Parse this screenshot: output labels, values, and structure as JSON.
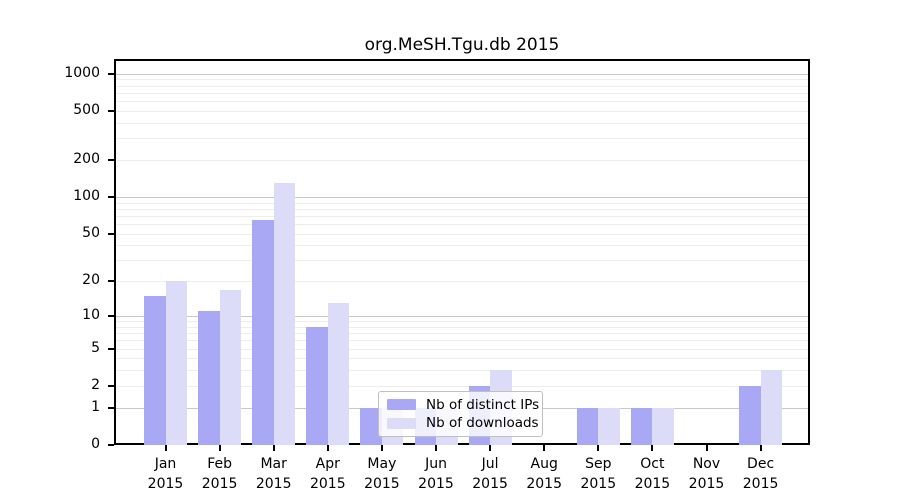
{
  "figure": {
    "title": "org.MeSH.Tgu.db 2015"
  },
  "chart_data": {
    "type": "bar",
    "title": "org.MeSH.Tgu.db 2015",
    "categories": [
      "Jan",
      "Feb",
      "Mar",
      "Apr",
      "May",
      "Jun",
      "Jul",
      "Aug",
      "Sep",
      "Oct",
      "Nov",
      "Dec"
    ],
    "year_label": "2015",
    "series": [
      {
        "name": "Nb of distinct IPs",
        "color": "#a8a8f4",
        "values": [
          15,
          11,
          65,
          8,
          1,
          1,
          2,
          0,
          1,
          1,
          0,
          2
        ]
      },
      {
        "name": "Nb of downloads",
        "color": "#dcdcf8",
        "values": [
          20,
          17,
          130,
          13,
          1,
          1,
          3,
          0,
          1,
          1,
          0,
          3
        ]
      }
    ],
    "xlabel": "",
    "ylabel": "",
    "yscale": "log10(1+value)",
    "ylim": [
      0,
      1290
    ],
    "ytick_values": [
      0,
      1,
      2,
      5,
      10,
      20,
      50,
      100,
      200,
      500,
      1000
    ],
    "ytick_labels": [
      "0",
      "1",
      "2",
      "5",
      "10",
      "20",
      "50",
      "100",
      "200",
      "500",
      "1000"
    ],
    "grid_major_values": [
      1,
      10,
      100,
      1000
    ],
    "grid_minor_values": [
      2,
      3,
      4,
      5,
      6,
      7,
      8,
      9,
      20,
      30,
      40,
      50,
      60,
      70,
      80,
      90,
      200,
      300,
      400,
      500,
      600,
      700,
      800,
      900
    ],
    "grid": "horizontal",
    "legend_position": "lower center, overlapping May-Jun bars"
  }
}
